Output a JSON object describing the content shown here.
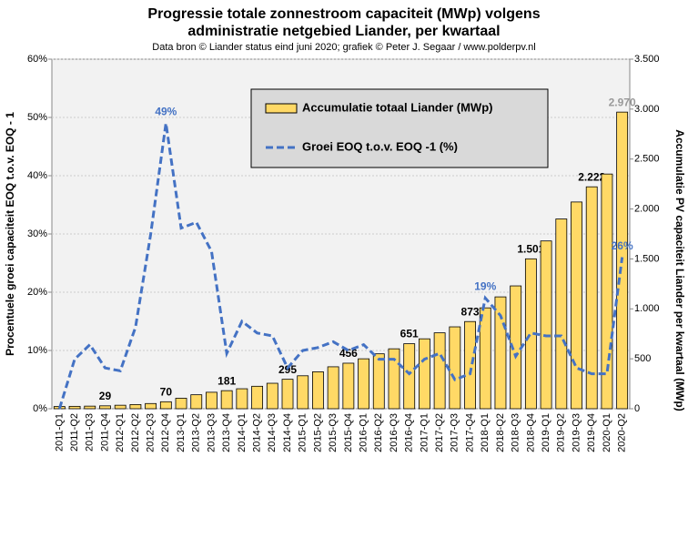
{
  "chart_data": {
    "type": "bar",
    "title": [
      "Progressie totale zonnestroom capaciteit (MWp) volgens",
      "administratie  netgebied Liander, per kwartaal"
    ],
    "subtitle": "Data bron © Liander status eind juni 2020; grafiek © Peter J. Segaar / www.polderpv.nl",
    "ylabel": "Procentuele groei capaciteit EOQ t.o.v. EOQ - 1",
    "y2label": "Accumulatie PV capaciteit Liander per kwartaal (MWp)",
    "categories": [
      "2011-Q1",
      "2011-Q2",
      "2011-Q3",
      "2011-Q4",
      "2012-Q1",
      "2012-Q2",
      "2012-Q3",
      "2012-Q4",
      "2013-Q1",
      "2013-Q2",
      "2013-Q3",
      "2013-Q4",
      "2014-Q1",
      "2014-Q2",
      "2014-Q3",
      "2014-Q4",
      "2015-Q1",
      "2015-Q2",
      "2015-Q3",
      "2015-Q4",
      "2016-Q1",
      "2016-Q2",
      "2016-Q3",
      "2016-Q4",
      "2017-Q1",
      "2017-Q2",
      "2017-Q3",
      "2017-Q4",
      "2018-Q1",
      "2018-Q2",
      "2018-Q3",
      "2018-Q4",
      "2019-Q1",
      "2019-Q2",
      "2019-Q3",
      "2019-Q4",
      "2020-Q1",
      "2020-Q2"
    ],
    "series": [
      {
        "name": "Accumulatie totaal Liander (MWp)",
        "type": "bar",
        "axis": "y2",
        "color": "#ffd966",
        "values": [
          22,
          24,
          26,
          29,
          35,
          42,
          52,
          70,
          105,
          140,
          165,
          181,
          200,
          225,
          255,
          295,
          330,
          370,
          420,
          456,
          500,
          550,
          600,
          651,
          700,
          760,
          820,
          873,
          1010,
          1120,
          1230,
          1501,
          1680,
          1900,
          2070,
          2222,
          2350,
          2970
        ],
        "value_labels": [
          null,
          null,
          null,
          "29",
          null,
          null,
          null,
          "70",
          null,
          null,
          null,
          "181",
          null,
          null,
          null,
          "295",
          null,
          null,
          null,
          "456",
          null,
          null,
          null,
          "651",
          null,
          null,
          null,
          "873",
          null,
          null,
          null,
          "1.501",
          null,
          null,
          null,
          "2.222",
          null,
          "2.970"
        ]
      },
      {
        "name": "Groei EOQ t.o.v. EOQ -1 (%)",
        "type": "line",
        "axis": "y",
        "color": "#4472c4",
        "values": [
          0,
          8.5,
          11,
          7,
          6.5,
          14,
          30,
          49,
          31,
          32,
          27,
          9.5,
          15,
          13,
          12.5,
          7,
          10,
          10.5,
          11.5,
          10,
          11,
          8.5,
          8.5,
          6,
          8.5,
          9.5,
          5,
          6,
          19,
          16,
          9,
          13,
          12.5,
          12.5,
          7,
          6,
          6,
          26
        ],
        "value_labels": [
          null,
          null,
          null,
          null,
          null,
          null,
          null,
          "49%",
          null,
          null,
          null,
          null,
          null,
          null,
          null,
          null,
          null,
          null,
          null,
          null,
          null,
          null,
          null,
          null,
          null,
          null,
          null,
          null,
          "19%",
          null,
          null,
          null,
          null,
          null,
          null,
          null,
          null,
          "26%"
        ]
      }
    ],
    "ylim": [
      0,
      60
    ],
    "yticks": [
      {
        "value": 0,
        "label": "0%"
      },
      {
        "value": 10,
        "label": "10%"
      },
      {
        "value": 20,
        "label": "20%"
      },
      {
        "value": 30,
        "label": "30%"
      },
      {
        "value": 40,
        "label": "40%"
      },
      {
        "value": 50,
        "label": "50%"
      },
      {
        "value": 60,
        "label": "60%"
      }
    ],
    "y2lim": [
      0,
      3500
    ],
    "y2ticks": [
      0,
      500,
      {
        "value": 1000,
        "label": "1.000"
      },
      {
        "value": 1500,
        "label": "1.500"
      },
      {
        "value": 2000,
        "label": "2.000"
      },
      {
        "value": 2500,
        "label": "2.500"
      },
      {
        "value": 3000,
        "label": "3.000"
      },
      {
        "value": 3500,
        "label": "3.500"
      }
    ],
    "grid": true,
    "legend": "top"
  }
}
